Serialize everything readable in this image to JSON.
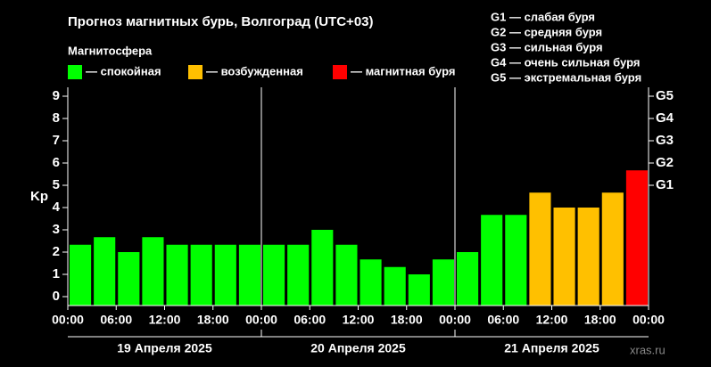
{
  "chart_data": {
    "type": "bar",
    "title": "Прогноз магнитных бурь, Волгоград (UTC+03)",
    "subtitle": "Магнитосфера",
    "ylabel": "Kp",
    "legend": [
      {
        "label": "— спокойная",
        "color": "#00ff00"
      },
      {
        "label": "— возбужденная",
        "color": "#ffc000"
      },
      {
        "label": "— магнитная буря",
        "color": "#ff0000"
      }
    ],
    "g_scale": [
      "G1 — слабая буря",
      "G2 — средняя буря",
      "G3 — сильная буря",
      "G4 — очень сильная буря",
      "G5 — экстремальная буря"
    ],
    "x": [
      0,
      3,
      6,
      9,
      12,
      15,
      18,
      21,
      24,
      27,
      30,
      33,
      36,
      39,
      42,
      45,
      48,
      51,
      54,
      57,
      60,
      63,
      66,
      69
    ],
    "values": [
      2.33,
      2.67,
      2,
      2.67,
      2.33,
      2.33,
      2.33,
      2.33,
      2.33,
      2.33,
      3,
      2.33,
      1.67,
      1.33,
      1,
      1.67,
      2,
      3.67,
      3.67,
      4.67,
      4,
      4,
      4.67,
      5.67
    ],
    "colors": [
      "#00ff00",
      "#00ff00",
      "#00ff00",
      "#00ff00",
      "#00ff00",
      "#00ff00",
      "#00ff00",
      "#00ff00",
      "#00ff00",
      "#00ff00",
      "#00ff00",
      "#00ff00",
      "#00ff00",
      "#00ff00",
      "#00ff00",
      "#00ff00",
      "#00ff00",
      "#00ff00",
      "#00ff00",
      "#ffc000",
      "#ffc000",
      "#ffc000",
      "#ffc000",
      "#ff0000"
    ],
    "bar_width": 3,
    "xlim": [
      0,
      72
    ],
    "xticks": [
      {
        "value": 0,
        "label": "00:00"
      },
      {
        "value": 6,
        "label": "06:00"
      },
      {
        "value": 12,
        "label": "12:00"
      },
      {
        "value": 18,
        "label": "18:00"
      },
      {
        "value": 24,
        "label": "00:00"
      },
      {
        "value": 30,
        "label": "06:00"
      },
      {
        "value": 36,
        "label": "12:00"
      },
      {
        "value": 42,
        "label": "18:00"
      },
      {
        "value": 48,
        "label": "00:00"
      },
      {
        "value": 54,
        "label": "06:00"
      },
      {
        "value": 60,
        "label": "12:00"
      },
      {
        "value": 66,
        "label": "18:00"
      },
      {
        "value": 72,
        "label": "00:00"
      }
    ],
    "day_labels": [
      "19 Апреля 2025",
      "20 Апреля 2025",
      "21 Апреля 2025"
    ],
    "ylim": [
      -0.4,
      9.4
    ],
    "yticks": [
      0,
      1,
      2,
      3,
      4,
      5,
      6,
      7,
      8,
      9
    ],
    "y2lim": [
      -0.4,
      9.4
    ],
    "y2ticks": [
      {
        "value": 5,
        "label": "G1"
      },
      {
        "value": 6,
        "label": "G2"
      },
      {
        "value": 7,
        "label": "G3"
      },
      {
        "value": 8,
        "label": "G4"
      },
      {
        "value": 9,
        "label": "G5"
      }
    ],
    "watermark": "xras.ru"
  }
}
